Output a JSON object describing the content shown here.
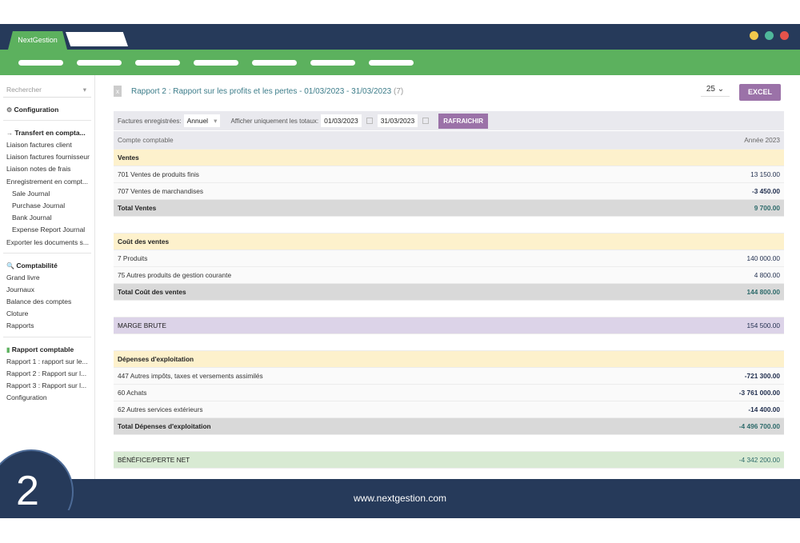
{
  "window": {
    "tab_active": "NextGestion",
    "dots": [
      "#f2c94c",
      "#4fb89a",
      "#e5534b"
    ]
  },
  "sidebar": {
    "search_placeholder": "Rechercher",
    "sections": [
      {
        "title": "Configuration",
        "icon": "gears-icon",
        "items": []
      },
      {
        "title": "Transfert en compta...",
        "icon": "arrow-right-icon",
        "items": [
          {
            "label": "Liaison factures client"
          },
          {
            "label": "Liaison factures fournisseur"
          },
          {
            "label": "Liaison notes de frais"
          },
          {
            "label": "Enregistrement en compt..."
          },
          {
            "label": "Sale Journal",
            "sub": true
          },
          {
            "label": "Purchase Journal",
            "sub": true
          },
          {
            "label": "Bank Journal",
            "sub": true
          },
          {
            "label": "Expense Report Journal",
            "sub": true
          },
          {
            "label": "Exporter les documents s..."
          }
        ]
      },
      {
        "title": "Comptabilité",
        "icon": "search-icon",
        "items": [
          {
            "label": "Grand livre"
          },
          {
            "label": "Journaux"
          },
          {
            "label": "Balance des comptes"
          },
          {
            "label": "Cloture"
          },
          {
            "label": "Rapports"
          }
        ]
      },
      {
        "title": "Rapport comptable",
        "icon": "document-icon",
        "items": [
          {
            "label": "Rapport 1 : rapport sur le..."
          },
          {
            "label": "Rapport 2 : Rapport sur l..."
          },
          {
            "label": "Rapport 3 : Rapport sur l..."
          },
          {
            "label": "Configuration"
          }
        ]
      }
    ]
  },
  "main": {
    "title": "Rapport 2 : Rapport sur les profits et les pertes - 01/03/2023 - 31/03/2023",
    "count": "(7)",
    "per_page": "25",
    "excel_label": "EXCEL",
    "filter": {
      "invoices_label": "Factures enregistrées:",
      "invoices_value": "Annuel",
      "totals_label": "Afficher uniquement les totaux:",
      "date_from": "01/03/2023",
      "date_to": "31/03/2023",
      "refresh_label": "RAFRAICHIR"
    },
    "columns": [
      "Compte comptable",
      "Année 2023"
    ],
    "rows": [
      {
        "type": "sec",
        "label": "Ventes",
        "value": ""
      },
      {
        "type": "item",
        "label": "701 Ventes de produits finis",
        "value": "13 150.00"
      },
      {
        "type": "item",
        "label": "707 Ventes de marchandises",
        "value": "-3 450.00",
        "bold": true
      },
      {
        "type": "tot",
        "label": "Total Ventes",
        "value": "9 700.00"
      },
      {
        "type": "blank",
        "label": "",
        "value": ""
      },
      {
        "type": "sec",
        "label": "Coût des ventes",
        "value": ""
      },
      {
        "type": "item",
        "label": "7 Produits",
        "value": "140 000.00"
      },
      {
        "type": "item",
        "label": "75 Autres produits de gestion courante",
        "value": "4 800.00"
      },
      {
        "type": "tot",
        "label": "Total Coût des ventes",
        "value": "144 800.00"
      },
      {
        "type": "blank",
        "label": "",
        "value": ""
      },
      {
        "type": "marge",
        "label": "MARGE BRUTE",
        "value": "154 500.00"
      },
      {
        "type": "blank",
        "label": "",
        "value": ""
      },
      {
        "type": "sec",
        "label": "Dépenses d'exploitation",
        "value": ""
      },
      {
        "type": "item",
        "label": "447 Autres impôts, taxes et versements assimilés",
        "value": "-721 300.00",
        "bold": true
      },
      {
        "type": "item",
        "label": "60 Achats",
        "value": "-3 761 000.00",
        "bold": true
      },
      {
        "type": "item",
        "label": "62 Autres services extérieurs",
        "value": "-14 400.00",
        "bold": true
      },
      {
        "type": "tot",
        "label": "Total Dépenses d'exploitation",
        "value": "-4 496 700.00"
      },
      {
        "type": "blank",
        "label": "",
        "value": ""
      },
      {
        "type": "ben",
        "label": "BÉNÉFICE/PERTE NET",
        "value": "-4 342 200.00"
      }
    ]
  },
  "footer": {
    "url": "www.nextgestion.com",
    "step": "2"
  }
}
